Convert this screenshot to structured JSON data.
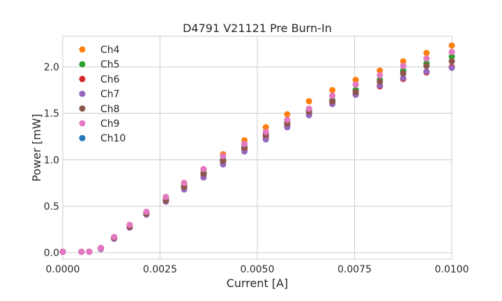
{
  "chart_data": {
    "type": "scatter",
    "title": "D4791 V21121 Pre Burn-In",
    "xlabel": "Current [A]",
    "ylabel": "Power [mW]",
    "xlim": [
      0.0,
      0.01
    ],
    "ylim": [
      -0.07,
      2.33
    ],
    "xticks": [
      "0.0000",
      "0.0025",
      "0.0050",
      "0.0075",
      "0.0100"
    ],
    "yticks": [
      "0.0",
      "0.5",
      "1.0",
      "1.5",
      "2.0"
    ],
    "xtick_values": [
      0.0,
      0.0025,
      0.005,
      0.0075,
      0.01
    ],
    "ytick_values": [
      0.0,
      0.5,
      1.0,
      1.5,
      2.0
    ],
    "grid": true,
    "legend_position": "top-left",
    "x": [
      0.0,
      0.00048,
      0.00068,
      0.00098,
      0.00132,
      0.00172,
      0.00215,
      0.00265,
      0.00312,
      0.00362,
      0.00412,
      0.00467,
      0.00522,
      0.00577,
      0.00633,
      0.00693,
      0.00753,
      0.00815,
      0.00875,
      0.00935,
      0.01
    ],
    "series": [
      {
        "name": "Ch4",
        "color": "#ff7f0e",
        "values": [
          0.01,
          0.01,
          0.01,
          0.05,
          0.16,
          0.29,
          0.43,
          0.59,
          0.75,
          0.89,
          1.06,
          1.21,
          1.35,
          1.49,
          1.63,
          1.75,
          1.86,
          1.96,
          2.06,
          2.15,
          2.23
        ]
      },
      {
        "name": "Ch5",
        "color": "#2ca02c",
        "values": [
          0.01,
          0.01,
          0.01,
          0.05,
          0.16,
          0.28,
          0.42,
          0.57,
          0.72,
          0.86,
          1.0,
          1.14,
          1.28,
          1.41,
          1.53,
          1.64,
          1.75,
          1.86,
          1.96,
          2.04,
          2.11
        ]
      },
      {
        "name": "Ch6",
        "color": "#d62728",
        "values": [
          0.01,
          0.01,
          0.01,
          0.05,
          0.16,
          0.28,
          0.42,
          0.56,
          0.71,
          0.84,
          0.98,
          1.11,
          1.25,
          1.37,
          1.5,
          1.61,
          1.71,
          1.79,
          1.87,
          1.94,
          2.0
        ]
      },
      {
        "name": "Ch7",
        "color": "#9467bd",
        "values": [
          0.01,
          0.01,
          0.01,
          0.04,
          0.15,
          0.27,
          0.41,
          0.55,
          0.68,
          0.81,
          0.95,
          1.09,
          1.22,
          1.35,
          1.48,
          1.6,
          1.7,
          1.8,
          1.88,
          1.95,
          1.99
        ]
      },
      {
        "name": "Ch8",
        "color": "#8c564b",
        "values": [
          0.01,
          0.01,
          0.01,
          0.05,
          0.16,
          0.28,
          0.42,
          0.56,
          0.71,
          0.85,
          0.99,
          1.13,
          1.27,
          1.39,
          1.52,
          1.63,
          1.73,
          1.84,
          1.93,
          2.01,
          2.06
        ]
      },
      {
        "name": "Ch9",
        "color": "#e377c2",
        "values": [
          0.01,
          0.01,
          0.01,
          0.05,
          0.17,
          0.3,
          0.44,
          0.6,
          0.75,
          0.9,
          1.04,
          1.17,
          1.3,
          1.43,
          1.55,
          1.69,
          1.81,
          1.91,
          2.01,
          2.09,
          2.16
        ]
      },
      {
        "name": "Ch10",
        "color": "#1f77b4",
        "values": []
      }
    ]
  }
}
